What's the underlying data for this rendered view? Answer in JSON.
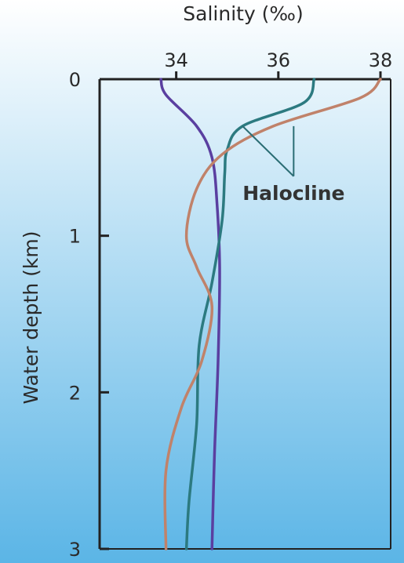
{
  "chart_data": {
    "type": "line",
    "xlabel": "Salinity (‰)",
    "ylabel": "Water depth (km)",
    "x_axis_position": "top",
    "y_axis_inverted": true,
    "xlim": [
      32.5,
      38.2
    ],
    "ylim": [
      0,
      3
    ],
    "x_ticks": [
      34,
      36,
      38
    ],
    "x_tick_labels": [
      "34",
      "36",
      "38"
    ],
    "y_ticks": [
      0,
      1,
      2,
      3
    ],
    "y_tick_labels": [
      "0",
      "1",
      "2",
      "3"
    ],
    "grid": false,
    "background": {
      "top_color": "#ffffff",
      "bottom_color": "#5bb5e6"
    },
    "series": [
      {
        "color": "#5a3fa0",
        "points": [
          [
            33.7,
            0.0
          ],
          [
            33.8,
            0.1
          ],
          [
            34.4,
            0.3
          ],
          [
            34.7,
            0.5
          ],
          [
            34.8,
            0.8
          ],
          [
            34.85,
            1.2
          ],
          [
            34.82,
            1.8
          ],
          [
            34.75,
            2.4
          ],
          [
            34.7,
            3.0
          ]
        ]
      },
      {
        "color": "#2c7a80",
        "points": [
          [
            36.7,
            0.0
          ],
          [
            36.5,
            0.15
          ],
          [
            35.3,
            0.3
          ],
          [
            35.0,
            0.45
          ],
          [
            34.95,
            0.6
          ],
          [
            34.9,
            0.9
          ],
          [
            34.7,
            1.3
          ],
          [
            34.45,
            1.7
          ],
          [
            34.4,
            2.2
          ],
          [
            34.25,
            2.7
          ],
          [
            34.2,
            3.0
          ]
        ]
      },
      {
        "color": "#c0826a",
        "points": [
          [
            38.0,
            0.0
          ],
          [
            37.6,
            0.12
          ],
          [
            35.9,
            0.3
          ],
          [
            34.9,
            0.48
          ],
          [
            34.4,
            0.7
          ],
          [
            34.2,
            1.0
          ],
          [
            34.4,
            1.2
          ],
          [
            34.7,
            1.45
          ],
          [
            34.5,
            1.8
          ],
          [
            34.1,
            2.1
          ],
          [
            33.8,
            2.5
          ],
          [
            33.8,
            3.0
          ]
        ]
      }
    ],
    "annotations": [
      {
        "text": "Halocline",
        "pointer_targets": [
          [
            35.3,
            0.3
          ],
          [
            36.3,
            0.3
          ]
        ],
        "label_anchor": [
          36.3,
          0.75
        ]
      }
    ]
  }
}
